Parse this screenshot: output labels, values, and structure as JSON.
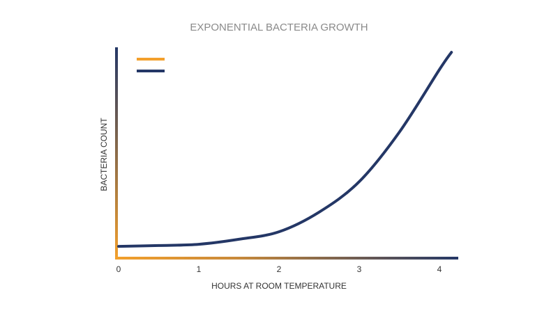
{
  "chart_data": {
    "type": "line",
    "title": "EXPONENTIAL BACTERIA GROWTH",
    "x_label": "HOURS AT ROOM TEMPERATURE",
    "y_label": "BACTERIA COUNT",
    "x": [
      0,
      0.5,
      1,
      1.5,
      2,
      2.5,
      3,
      3.5,
      4,
      4.15
    ],
    "series": [
      {
        "color": "#243766",
        "values": [
          5.3,
          5.7,
          6.3,
          8.7,
          12.3,
          21.7,
          36.3,
          60,
          90,
          98.3
        ]
      }
    ],
    "xlim": [
      0,
      4.2
    ],
    "xticks": [
      0,
      1,
      2,
      3,
      4
    ],
    "ylim": [
      0,
      100
    ]
  }
}
